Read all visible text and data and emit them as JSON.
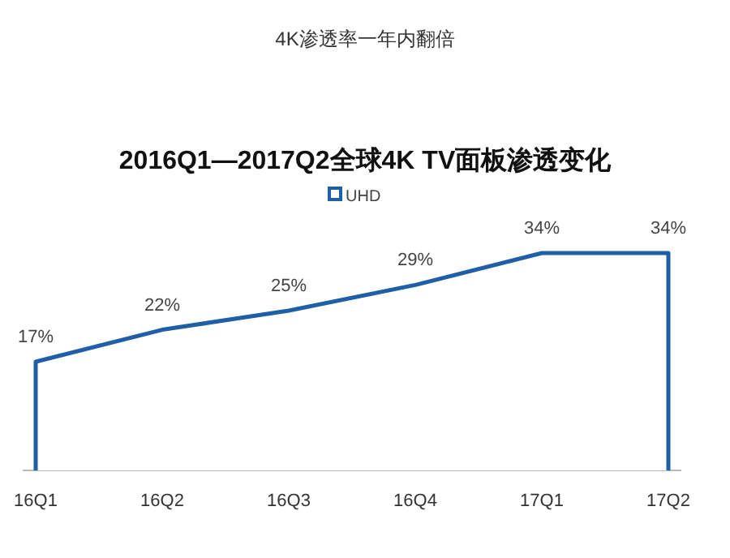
{
  "chart_data": {
    "type": "area",
    "title": "4K渗透率一年内翻倍",
    "subtitle": "2016Q1—2017Q2全球4K TV面板渗透变化",
    "categories": [
      "16Q1",
      "16Q2",
      "16Q3",
      "16Q4",
      "17Q1",
      "17Q2"
    ],
    "series": [
      {
        "name": "UHD",
        "color": "#1f5fa8",
        "values": [
          17,
          22,
          25,
          29,
          34,
          34
        ],
        "value_labels": [
          "17%",
          "22%",
          "25%",
          "29%",
          "34%",
          "34%"
        ]
      }
    ],
    "legend": "top"
  }
}
